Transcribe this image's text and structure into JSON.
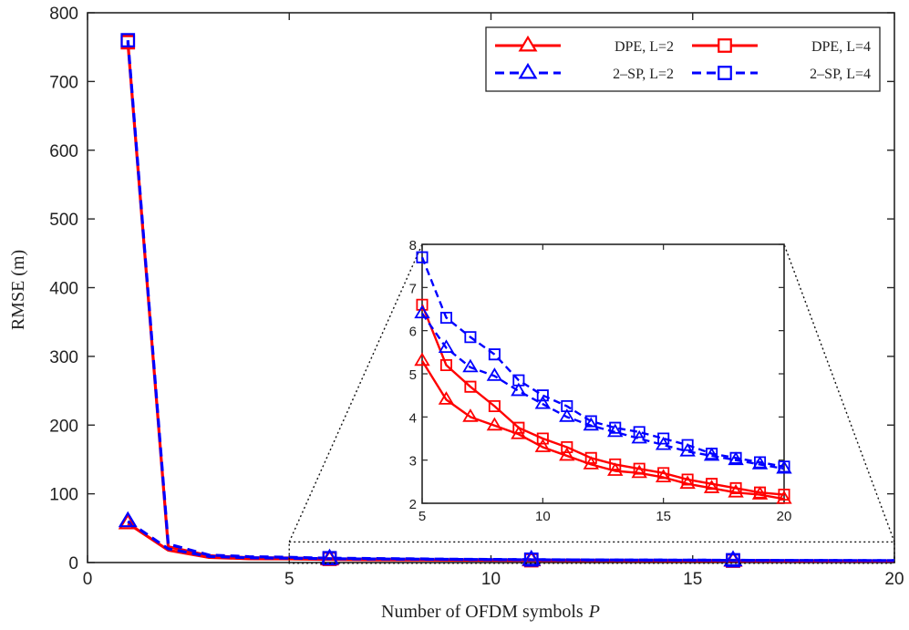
{
  "chart_data": [
    {
      "id": "main",
      "type": "line",
      "title": "",
      "xlabel": "Number of OFDM symbols",
      "xlabel_var": "P",
      "ylabel": "RMSE (m)",
      "xlim": [
        0,
        20
      ],
      "ylim": [
        0,
        800
      ],
      "xticks": [
        0,
        5,
        10,
        15,
        20
      ],
      "yticks": [
        0,
        100,
        200,
        300,
        400,
        500,
        600,
        700,
        800
      ],
      "grid": false,
      "legend_position": "top-right",
      "x": [
        1,
        2,
        3,
        4,
        5,
        6,
        7,
        8,
        9,
        10,
        11,
        12,
        13,
        14,
        15,
        16,
        17,
        18,
        19,
        20
      ],
      "series": [
        {
          "name": "DPE, L=2",
          "color": "#ff0000",
          "dash": "solid",
          "marker": "triangle",
          "values": [
            57,
            18,
            7.5,
            5.5,
            5.3,
            4.4,
            4.0,
            3.8,
            3.6,
            3.3,
            3.1,
            2.9,
            2.75,
            2.7,
            2.6,
            2.45,
            2.35,
            2.25,
            2.2,
            2.1
          ]
        },
        {
          "name": "DPE, L=4",
          "color": "#ff0000",
          "dash": "solid",
          "marker": "square",
          "values": [
            757,
            23,
            10,
            7,
            6.6,
            5.2,
            4.7,
            4.25,
            3.75,
            3.5,
            3.3,
            3.05,
            2.9,
            2.8,
            2.7,
            2.55,
            2.45,
            2.35,
            2.25,
            2.2
          ]
        },
        {
          "name": "2–SP, L=2",
          "color": "#0000ff",
          "dash": "dashed",
          "marker": "triangle",
          "values": [
            60,
            20,
            9,
            7,
            6.4,
            5.6,
            5.15,
            4.95,
            4.6,
            4.3,
            4.0,
            3.8,
            3.65,
            3.5,
            3.35,
            3.2,
            3.1,
            3.0,
            2.9,
            2.8
          ]
        },
        {
          "name": "2–SP, L=4",
          "color": "#0000ff",
          "dash": "dashed",
          "marker": "square",
          "values": [
            760,
            27,
            11,
            8.5,
            7.7,
            6.3,
            5.85,
            5.45,
            4.85,
            4.5,
            4.25,
            3.9,
            3.75,
            3.65,
            3.5,
            3.35,
            3.15,
            3.05,
            2.95,
            2.85
          ]
        }
      ],
      "marker_indices_main": [
        0,
        5,
        10,
        15
      ]
    },
    {
      "id": "inset",
      "type": "line",
      "title": "",
      "xlim": [
        5,
        20
      ],
      "ylim": [
        2,
        8
      ],
      "xticks": [
        5,
        10,
        15,
        20
      ],
      "yticks": [
        2,
        3,
        4,
        5,
        6,
        7,
        8
      ],
      "grid": false,
      "series_ref": "main",
      "x_range": [
        5,
        20
      ]
    }
  ]
}
